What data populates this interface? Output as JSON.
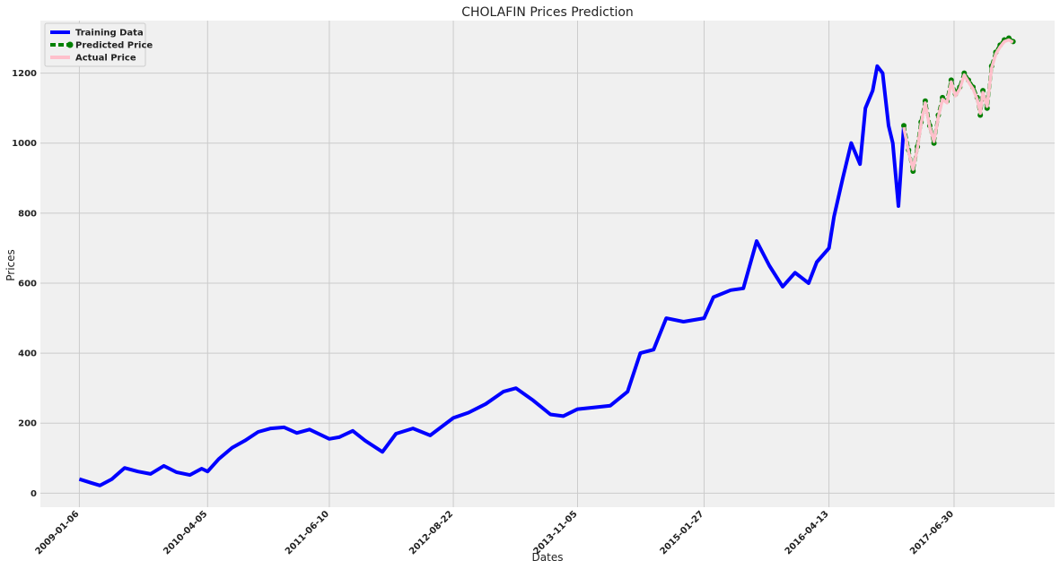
{
  "chart_data": {
    "type": "line",
    "title": "CHOLAFIN Prices Prediction",
    "xlabel": "Dates",
    "ylabel": "Prices",
    "x_ticks": [
      "2009-01-06",
      "2010-04-05",
      "2011-06-10",
      "2012-08-22",
      "2013-11-05",
      "2015-01-27",
      "2016-04-13",
      "2017-06-30"
    ],
    "y_ticks": [
      0,
      200,
      400,
      600,
      800,
      1000,
      1200
    ],
    "xlim": [
      "2008-08-21",
      "2018-06-21"
    ],
    "ylim": [
      -40,
      1350
    ],
    "grid": true,
    "legend_position": "top-left",
    "series": [
      {
        "name": "Training Data",
        "color": "#0000ff",
        "style": "solid",
        "x": [
          "2009-01-06",
          "2009-02-15",
          "2009-03-20",
          "2009-05-01",
          "2009-06-15",
          "2009-08-01",
          "2009-09-15",
          "2009-11-01",
          "2009-12-15",
          "2010-02-01",
          "2010-03-15",
          "2010-04-05",
          "2010-05-15",
          "2010-07-01",
          "2010-08-15",
          "2010-10-01",
          "2010-11-15",
          "2011-01-01",
          "2011-02-15",
          "2011-04-01",
          "2011-06-10",
          "2011-07-15",
          "2011-09-01",
          "2011-10-15",
          "2011-12-15",
          "2012-02-01",
          "2012-04-01",
          "2012-06-01",
          "2012-08-22",
          "2012-10-15",
          "2012-12-15",
          "2013-02-15",
          "2013-04-01",
          "2013-06-01",
          "2013-08-01",
          "2013-09-15",
          "2013-11-05",
          "2014-01-01",
          "2014-03-01",
          "2014-05-01",
          "2014-06-15",
          "2014-08-01",
          "2014-09-15",
          "2014-11-15",
          "2015-01-27",
          "2015-03-01",
          "2015-05-01",
          "2015-06-15",
          "2015-08-01",
          "2015-09-15",
          "2015-11-01",
          "2015-12-15",
          "2016-02-01",
          "2016-03-01",
          "2016-04-13",
          "2016-05-01",
          "2016-06-01",
          "2016-07-01",
          "2016-08-01",
          "2016-08-20",
          "2016-09-15",
          "2016-10-01",
          "2016-10-20",
          "2016-11-10",
          "2016-11-25",
          "2016-12-15",
          "2017-01-03"
        ],
        "y": [
          40,
          30,
          22,
          40,
          72,
          62,
          55,
          78,
          60,
          52,
          70,
          62,
          98,
          130,
          150,
          175,
          185,
          188,
          172,
          182,
          155,
          160,
          178,
          150,
          118,
          170,
          185,
          165,
          215,
          230,
          255,
          290,
          300,
          265,
          225,
          220,
          240,
          245,
          250,
          290,
          400,
          410,
          500,
          490,
          500,
          560,
          580,
          585,
          720,
          650,
          590,
          630,
          600,
          660,
          700,
          790,
          900,
          1000,
          940,
          1100,
          1150,
          1220,
          1200,
          1050,
          1000,
          820,
          1050
        ]
      },
      {
        "name": "Predicted Price",
        "color": "#008000",
        "style": "dashed-circle-markers",
        "x": [
          "2017-01-03",
          "2017-01-20",
          "2017-02-05",
          "2017-02-20",
          "2017-03-05",
          "2017-03-20",
          "2017-04-05",
          "2017-04-20",
          "2017-05-05",
          "2017-05-20",
          "2017-06-05",
          "2017-06-20",
          "2017-07-05",
          "2017-07-20",
          "2017-08-05",
          "2017-08-20",
          "2017-09-05",
          "2017-09-20",
          "2017-10-01",
          "2017-10-10",
          "2017-10-25",
          "2017-11-10",
          "2017-11-25",
          "2017-12-10",
          "2017-12-25",
          "2018-01-10",
          "2018-01-25"
        ],
        "y": [
          1050,
          980,
          920,
          990,
          1060,
          1120,
          1050,
          1000,
          1080,
          1130,
          1120,
          1180,
          1140,
          1160,
          1200,
          1180,
          1160,
          1130,
          1080,
          1150,
          1100,
          1220,
          1260,
          1280,
          1295,
          1300,
          1290
        ]
      },
      {
        "name": "Actual Price",
        "color": "#ffc0cb",
        "style": "solid",
        "x": [
          "2017-01-03",
          "2017-01-20",
          "2017-02-05",
          "2017-02-20",
          "2017-03-05",
          "2017-03-20",
          "2017-04-05",
          "2017-04-20",
          "2017-05-05",
          "2017-05-20",
          "2017-06-05",
          "2017-06-20",
          "2017-07-05",
          "2017-07-20",
          "2017-08-05",
          "2017-08-20",
          "2017-09-05",
          "2017-09-20",
          "2017-10-01",
          "2017-10-10",
          "2017-10-25",
          "2017-11-10",
          "2017-11-25",
          "2017-12-10",
          "2017-12-25",
          "2018-01-10",
          "2018-01-25"
        ],
        "y": [
          1045,
          975,
          925,
          985,
          1055,
          1115,
          1045,
          1005,
          1075,
          1125,
          1115,
          1175,
          1135,
          1155,
          1195,
          1175,
          1155,
          1125,
          1085,
          1145,
          1105,
          1215,
          1255,
          1275,
          1290,
          1295,
          1288
        ]
      }
    ]
  }
}
